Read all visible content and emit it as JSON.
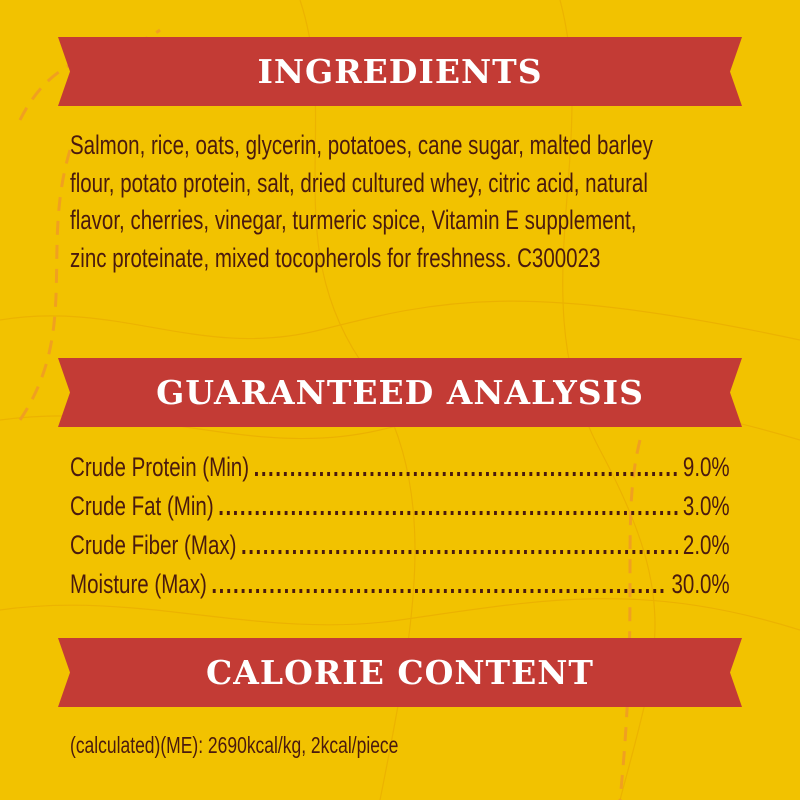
{
  "colors": {
    "background": "#F2C200",
    "banner": "#C33B35",
    "text": "#4A1A0E",
    "heading_text": "#FFFFFF"
  },
  "ingredients": {
    "title": "INGREDIENTS",
    "lines": [
      "Salmon, rice, oats, glycerin, potatoes, cane sugar, malted barley",
      "flour, potato protein, salt, dried cultured whey, citric acid, natural",
      "flavor, cherries, vinegar, turmeric spice, Vitamin E supplement,",
      "zinc proteinate, mixed tocopherols for freshness. C300023"
    ]
  },
  "analysis": {
    "title": "GUARANTEED ANALYSIS",
    "rows": [
      {
        "label": "Crude Protein (Min)",
        "value": "9.0%"
      },
      {
        "label": "Crude Fat (Min)",
        "value": "3.0%"
      },
      {
        "label": "Crude Fiber (Max)",
        "value": "2.0%"
      },
      {
        "label": "Moisture (Max)",
        "value": "30.0%"
      }
    ]
  },
  "calorie": {
    "title": "CALORIE CONTENT",
    "text": "(calculated)(ME): 2690kcal/kg, 2kcal/piece"
  }
}
